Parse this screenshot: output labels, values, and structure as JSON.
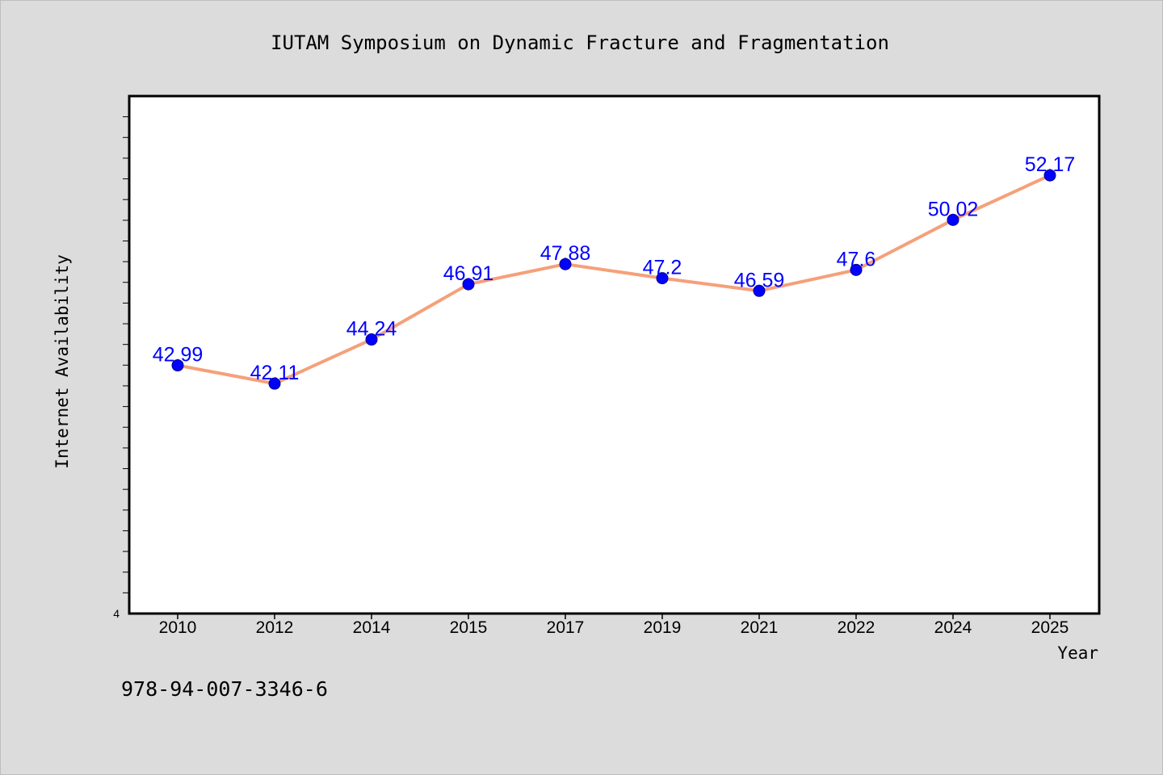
{
  "chart_data": {
    "type": "line",
    "title": "IUTAM Symposium on Dynamic Fracture and Fragmentation",
    "xlabel": "Year",
    "ylabel": "Internet Availability",
    "categories": [
      "2010",
      "2012",
      "2014",
      "2015",
      "2017",
      "2019",
      "2021",
      "2022",
      "2024",
      "2025"
    ],
    "series": [
      {
        "values": [
          42.99,
          42.11,
          44.24,
          46.91,
          47.88,
          47.2,
          46.59,
          47.6,
          50.02,
          52.17
        ],
        "labels": [
          "42.99",
          "42.11",
          "44.24",
          "46.91",
          "47.88",
          "47.2",
          "46.59",
          "47.6",
          "50.02",
          "52.17"
        ]
      }
    ],
    "ylim": [
      31,
      56
    ],
    "y_tick_label": "4",
    "grid": false,
    "line_color": "#f5a07a",
    "marker_color": "#0000ff",
    "label_color": "#0000ff"
  },
  "footer": {
    "isbn": "978-94-007-3346-6"
  }
}
